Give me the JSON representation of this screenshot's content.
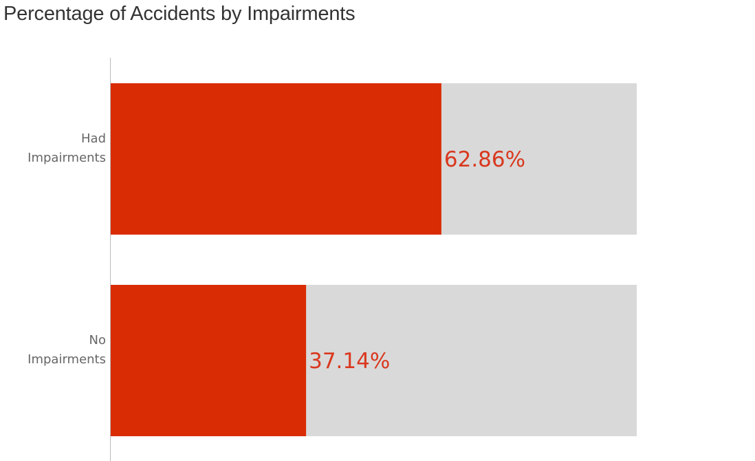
{
  "chart_data": {
    "type": "bar",
    "orientation": "horizontal",
    "title": "Percentage of Accidents by Impairments",
    "categories": [
      [
        "Had",
        "Impairments"
      ],
      [
        "No",
        "Impairments"
      ]
    ],
    "values": [
      62.86,
      37.14
    ],
    "value_labels": [
      "62.86%",
      "37.14%"
    ],
    "xlim": [
      0,
      100
    ],
    "background_bar_value": 100,
    "xlabel": "",
    "ylabel": "",
    "grid": false,
    "legend": "none",
    "colors": {
      "bar": "#d92c04",
      "background_bar": "#d9d9d9",
      "value_label": "#d9381e",
      "axis": "#bbbbbb"
    }
  }
}
